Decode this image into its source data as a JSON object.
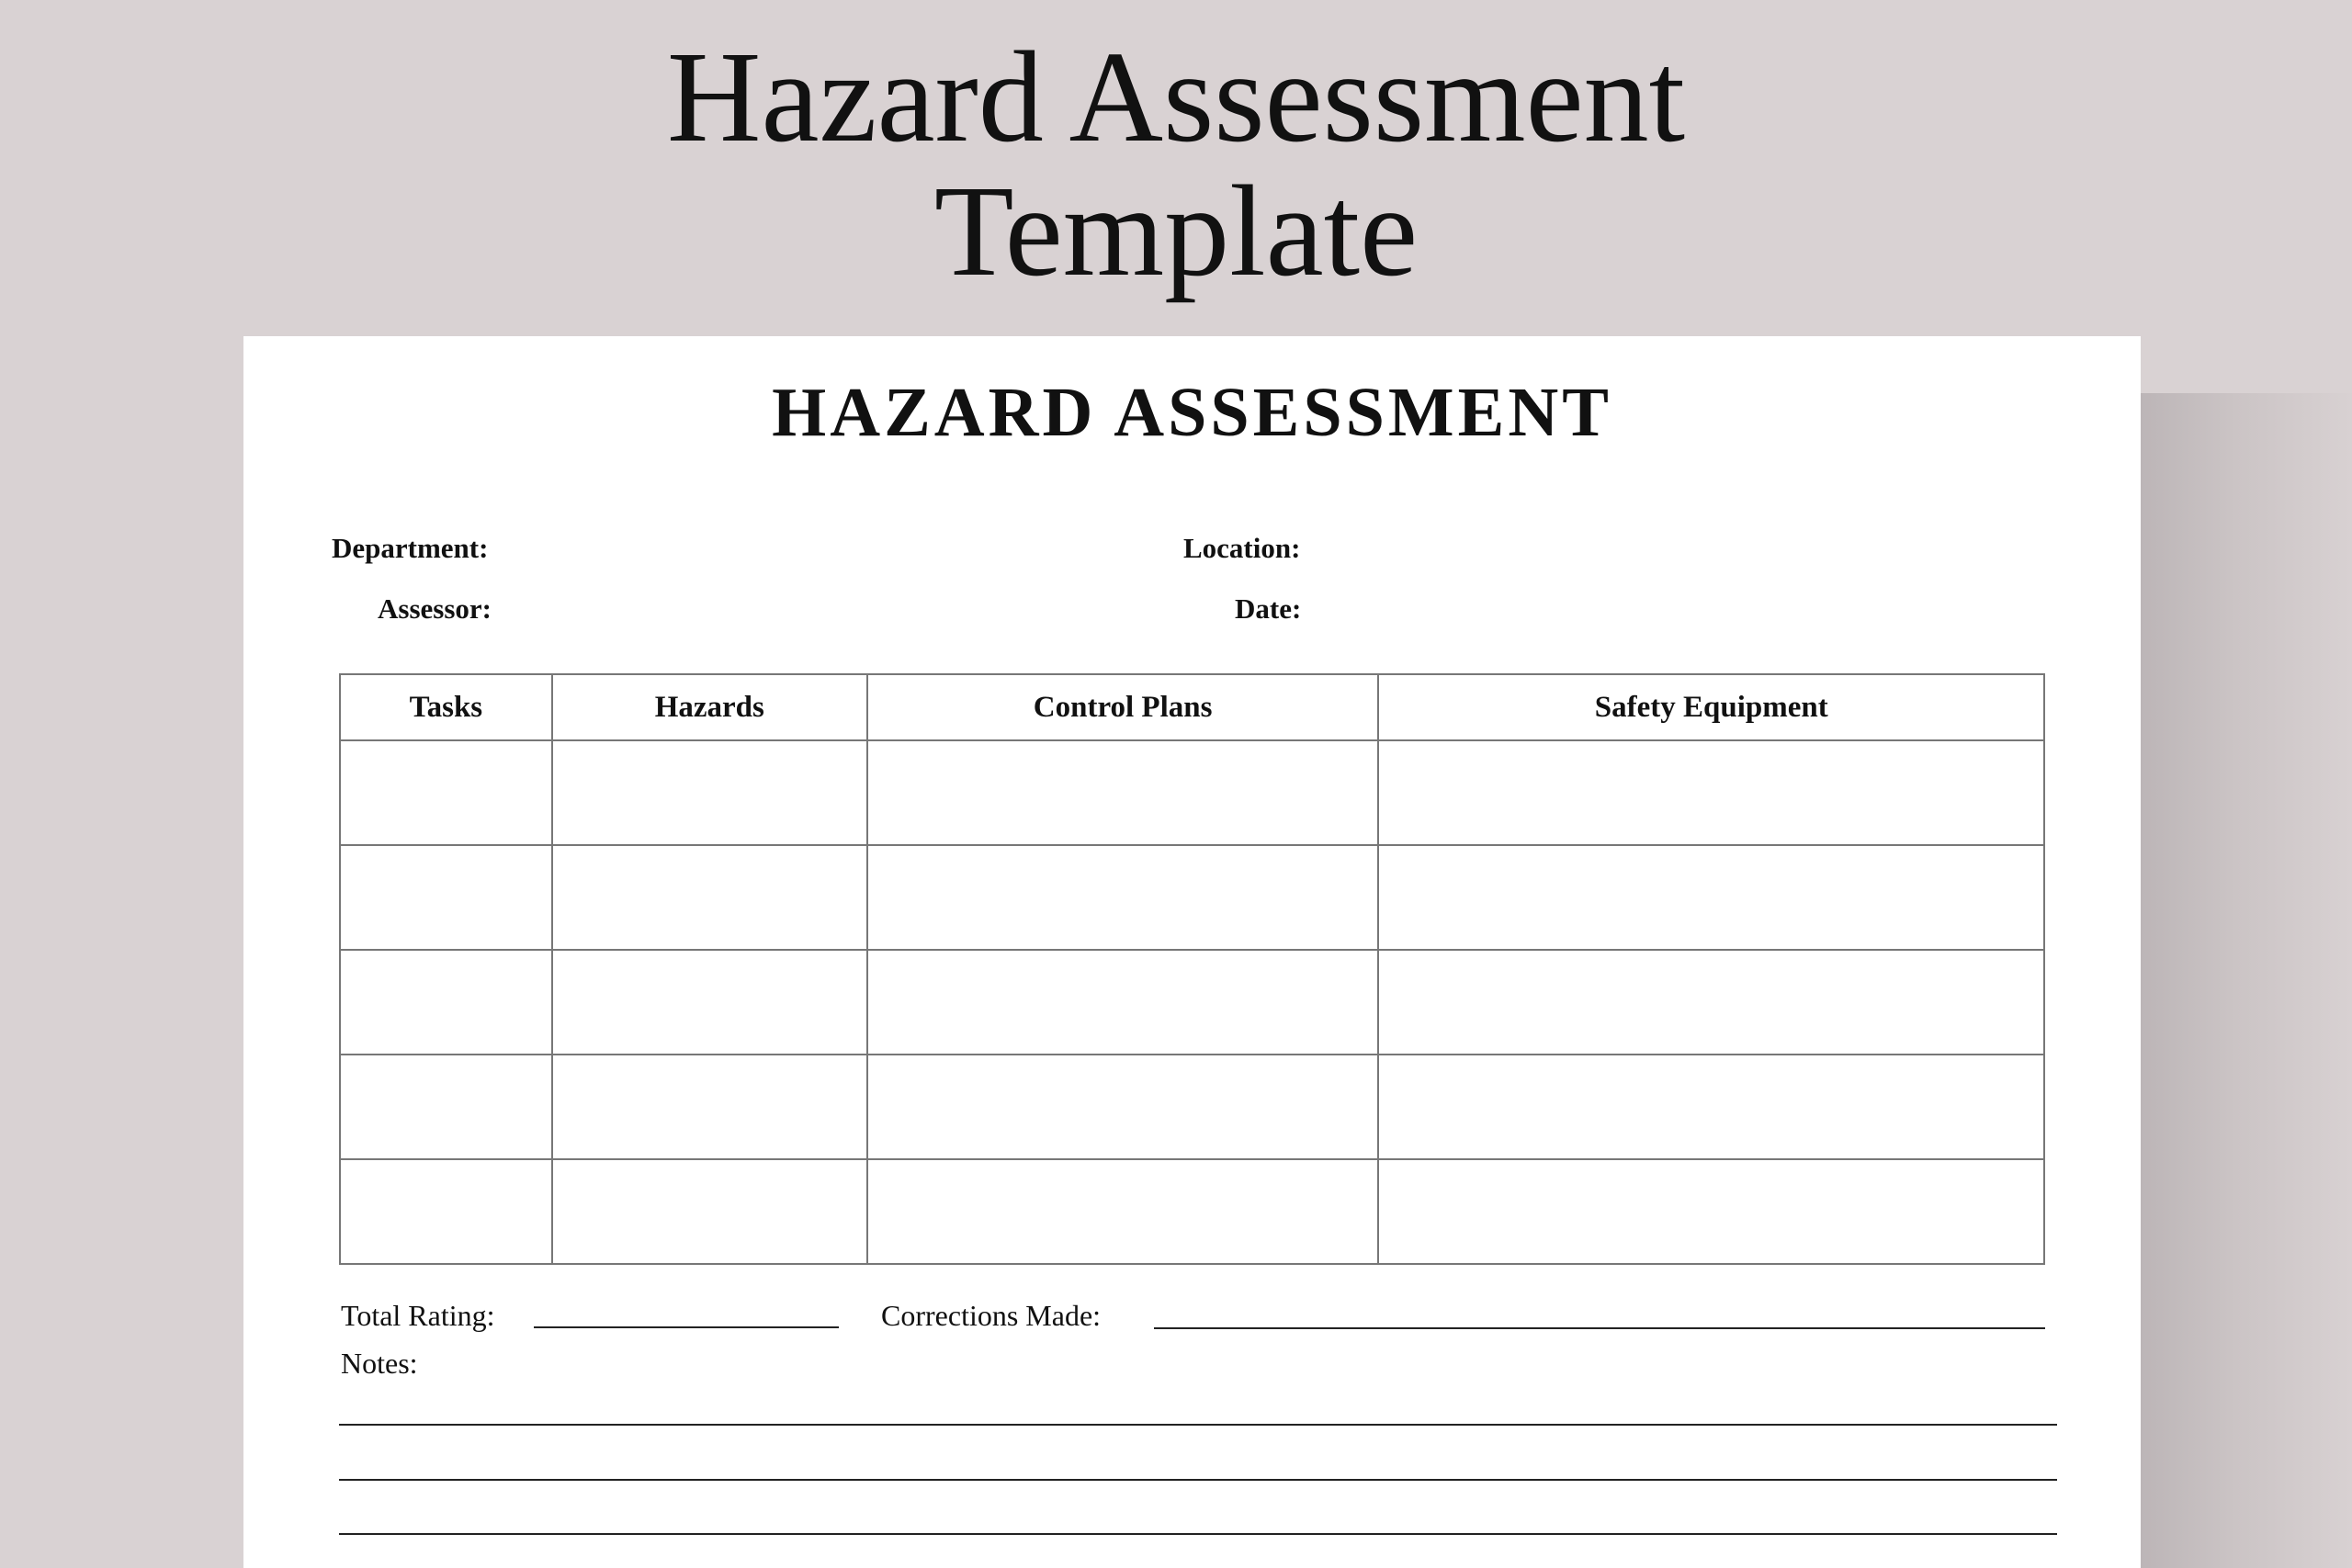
{
  "banner": {
    "title_line1": "Hazard Assessment",
    "title_line2": "Template"
  },
  "document": {
    "title": "HAZARD ASSESSMENT",
    "fields": {
      "department": "Department:",
      "location": "Location:",
      "assessor": "Assessor:",
      "date": "Date:"
    },
    "table": {
      "headers": [
        "Tasks",
        "Hazards",
        "Control Plans",
        "Safety Equipment"
      ],
      "empty_rows": 5
    },
    "footer": {
      "total_rating": "Total Rating:",
      "corrections_made": "Corrections Made:",
      "notes": "Notes:",
      "note_lines": 3
    }
  },
  "colors": {
    "background": "#d9d2d3",
    "paper": "#ffffff",
    "text": "#111111"
  }
}
